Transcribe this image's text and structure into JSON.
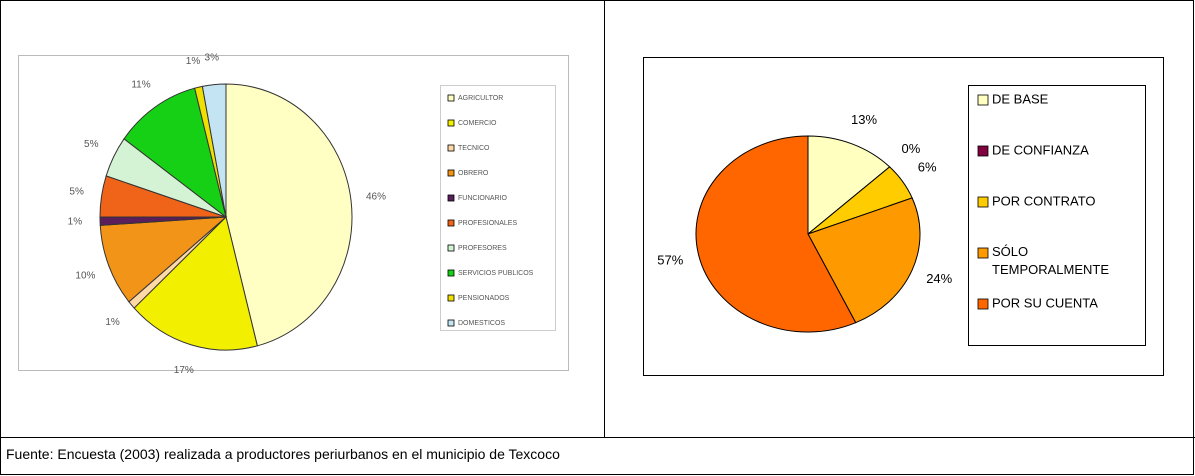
{
  "chart_data": [
    {
      "type": "pie",
      "categories": [
        "AGRICULTOR",
        "COMERCIO",
        "TECNICO",
        "OBRERO",
        "FUNCIONARIO",
        "PROFESIONALES",
        "PROFESORES",
        "SERVICIOS PUBLICOS",
        "PENSIONADOS",
        "DOMESTICOS"
      ],
      "values": [
        46,
        17,
        1,
        10,
        1,
        5,
        5,
        11,
        1,
        3
      ],
      "value_labels": [
        "46%",
        "17%",
        "1%",
        "10%",
        "1%",
        "5%",
        "5%",
        "11%",
        "1%",
        "3%"
      ],
      "colors": [
        "#ffffc4",
        "#f2f000",
        "#ffd8a8",
        "#f29418",
        "#5a1e5a",
        "#f0641a",
        "#d4f2d4",
        "#16d016",
        "#f0e000",
        "#c4e4f4"
      ]
    },
    {
      "type": "pie",
      "categories": [
        "DE BASE",
        "DE CONFIANZA",
        "POR CONTRATO",
        "SÓLO TEMPORALMENTE",
        "POR SU CUENTA"
      ],
      "values": [
        13,
        0,
        6,
        24,
        57
      ],
      "value_labels": [
        "13%",
        "0%",
        "6%",
        "24%",
        "57%"
      ],
      "colors": [
        "#ffffc0",
        "#800040",
        "#ffcc00",
        "#ff9900",
        "#ff6600"
      ]
    }
  ],
  "footer": "Fuente:  Encuesta (2003) realizada a productores periurbanos en el municipio de Texcoco"
}
